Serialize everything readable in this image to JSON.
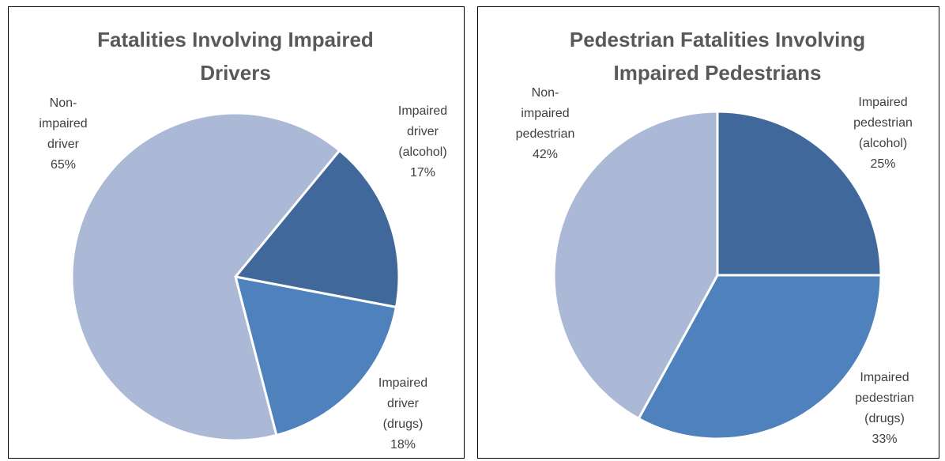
{
  "chart_data": [
    {
      "type": "pie",
      "title": "Fatalities Involving Impaired Drivers",
      "categories": [
        "Impaired driver (alcohol)",
        "Impaired driver (drugs)",
        "Non-impaired driver"
      ],
      "values": [
        17,
        18,
        65
      ],
      "value_labels": [
        "17%",
        "18%",
        "65%"
      ],
      "colors": [
        "#41689a",
        "#4f81bd",
        "#abb9d6"
      ]
    },
    {
      "type": "pie",
      "title": "Pedestrian Fatalities Involving Impaired Pedestrians",
      "categories": [
        "Impaired pedestrian (alcohol)",
        "Impaired pedestrian (drugs)",
        "Non-impaired pedestrian"
      ],
      "values": [
        25,
        33,
        42
      ],
      "value_labels": [
        "25%",
        "33%",
        "42%"
      ],
      "colors": [
        "#41689a",
        "#4f81bd",
        "#abb9d6"
      ]
    }
  ]
}
